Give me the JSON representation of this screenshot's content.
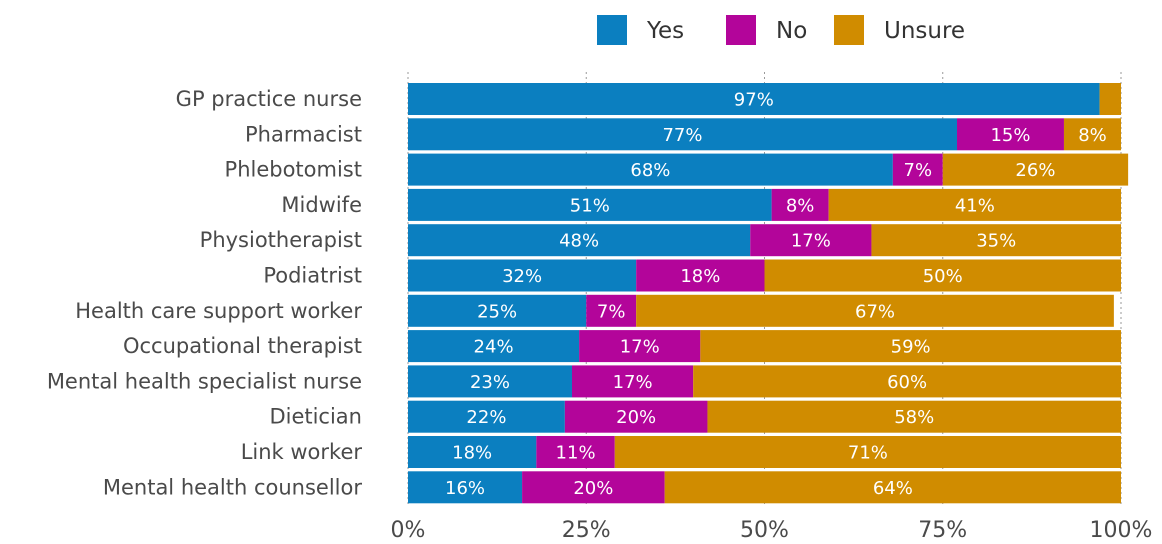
{
  "chart_data": {
    "type": "bar",
    "orientation": "horizontal",
    "stacked": true,
    "categories": [
      "GP practice nurse",
      "Pharmacist",
      "Phlebotomist",
      "Midwife",
      "Physiotherapist",
      "Podiatrist",
      "Health care support worker",
      "Occupational therapist",
      "Mental health specialist nurse",
      "Dietician",
      "Link worker",
      "Mental health counsellor"
    ],
    "series": [
      {
        "name": "Yes",
        "color": "#0b7fc0",
        "values": [
          97,
          77,
          68,
          51,
          48,
          32,
          25,
          24,
          23,
          22,
          18,
          16
        ],
        "labels": [
          "97%",
          "77%",
          "68%",
          "51%",
          "48%",
          "32%",
          "25%",
          "24%",
          "23%",
          "22%",
          "18%",
          "16%"
        ]
      },
      {
        "name": "No",
        "color": "#b3059a",
        "values": [
          0,
          15,
          7,
          8,
          17,
          18,
          7,
          17,
          17,
          20,
          11,
          20
        ],
        "labels": [
          "",
          "15%",
          "7%",
          "8%",
          "17%",
          "18%",
          "7%",
          "17%",
          "17%",
          "20%",
          "11%",
          "20%"
        ]
      },
      {
        "name": "Unsure",
        "color": "#d08c00",
        "values": [
          3,
          8,
          26,
          41,
          35,
          50,
          67,
          59,
          60,
          58,
          71,
          64
        ],
        "labels": [
          "",
          "8%",
          "26%",
          "41%",
          "35%",
          "50%",
          "67%",
          "59%",
          "60%",
          "58%",
          "71%",
          "64%"
        ]
      }
    ],
    "xlim": [
      0,
      100
    ],
    "xticks": [
      "0%",
      "25%",
      "50%",
      "75%",
      "100%"
    ],
    "grid": true,
    "legend_position": "top",
    "title": "",
    "xlabel": "",
    "ylabel": ""
  }
}
